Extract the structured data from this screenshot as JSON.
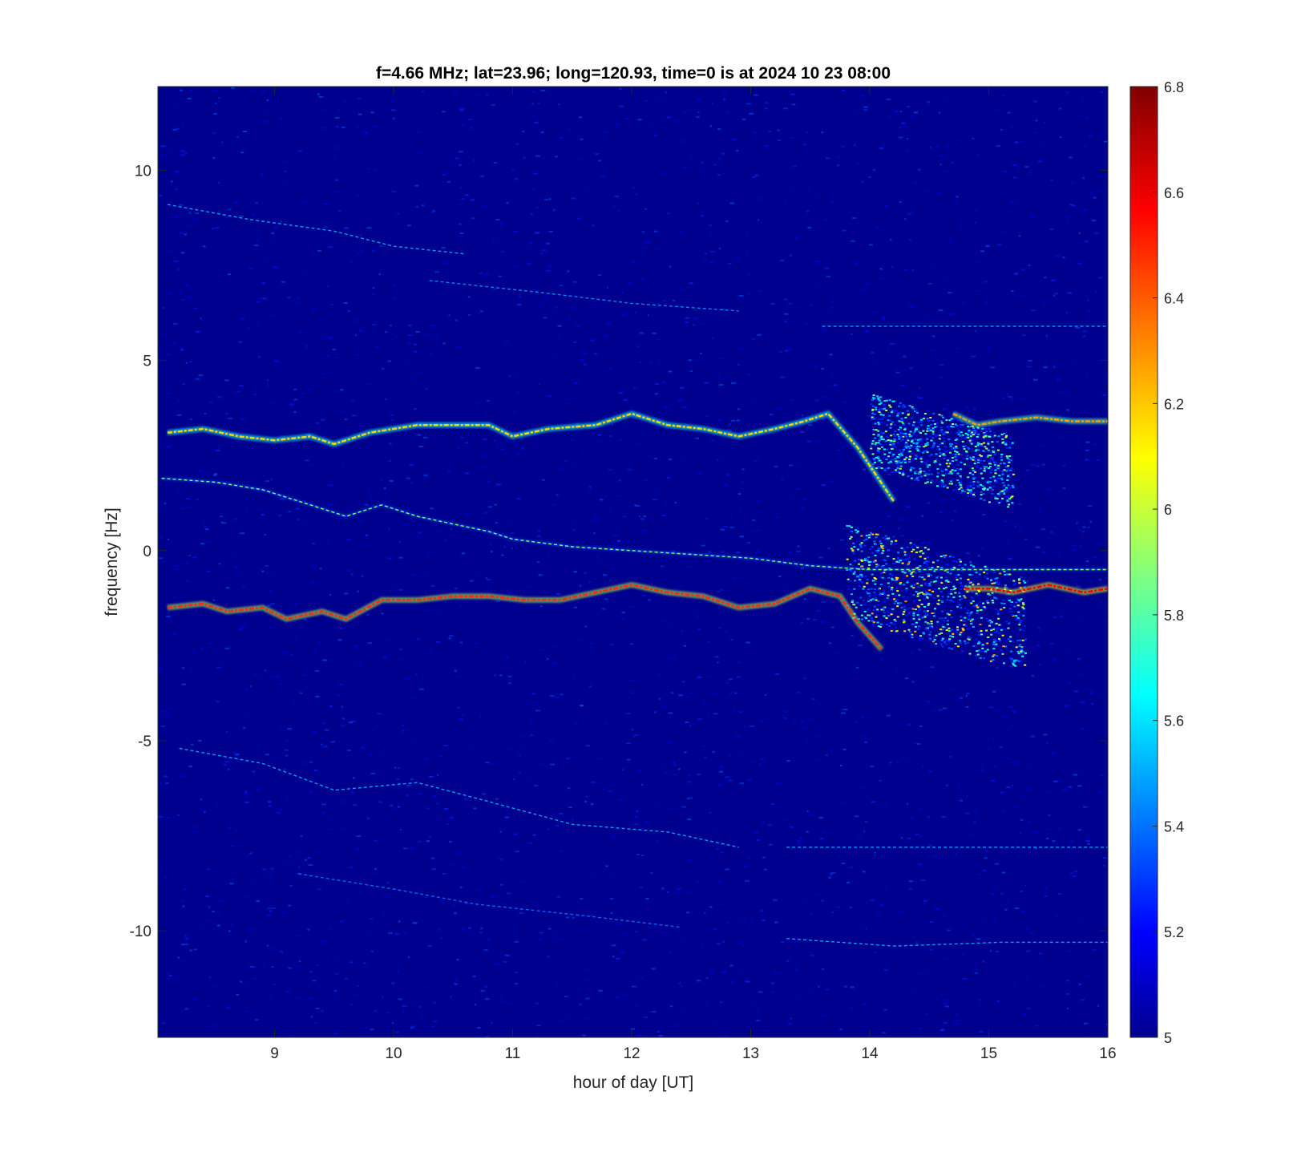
{
  "chart_data": {
    "type": "heatmap",
    "title": "f=4.66 MHz;  lat=23.96; long=120.93, time=0 is at 2024 10 23 08:00",
    "xlabel": "hour of day [UT]",
    "ylabel": "frequency [Hz]",
    "xlim": [
      8.02,
      16.0
    ],
    "ylim": [
      -12.8,
      12.2
    ],
    "xticks": [
      9,
      10,
      11,
      12,
      13,
      14,
      15,
      16
    ],
    "yticks": [
      -10,
      -5,
      0,
      5,
      10
    ],
    "colorbar": {
      "range": [
        5,
        6.8
      ],
      "ticks": [
        5,
        5.2,
        5.4,
        5.6,
        5.8,
        6,
        6.2,
        6.4,
        6.6,
        6.8
      ],
      "colormap": "jet"
    },
    "background_level": 5.0,
    "traces": [
      {
        "label": "upper doppler trace",
        "points": [
          [
            8.1,
            3.1
          ],
          [
            8.4,
            3.2
          ],
          [
            8.7,
            3.0
          ],
          [
            9.0,
            2.9
          ],
          [
            9.3,
            3.0
          ],
          [
            9.5,
            2.8
          ],
          [
            9.8,
            3.1
          ],
          [
            10.2,
            3.3
          ],
          [
            10.5,
            3.3
          ],
          [
            10.8,
            3.3
          ],
          [
            11.0,
            3.0
          ],
          [
            11.3,
            3.2
          ],
          [
            11.7,
            3.3
          ],
          [
            12.0,
            3.6
          ],
          [
            12.3,
            3.3
          ],
          [
            12.6,
            3.2
          ],
          [
            12.9,
            3.0
          ],
          [
            13.2,
            3.2
          ],
          [
            13.45,
            3.4
          ],
          [
            13.65,
            3.6
          ],
          [
            13.9,
            2.7
          ],
          [
            14.2,
            1.3
          ]
        ],
        "intensity": 6.2
      },
      {
        "label": "upper doppler trace recovered",
        "points": [
          [
            14.7,
            3.6
          ],
          [
            14.9,
            3.3
          ],
          [
            15.1,
            3.4
          ],
          [
            15.4,
            3.5
          ],
          [
            15.7,
            3.4
          ],
          [
            16.0,
            3.4
          ]
        ],
        "intensity": 6.3
      },
      {
        "label": "central drifting trace",
        "points": [
          [
            8.05,
            1.9
          ],
          [
            8.5,
            1.8
          ],
          [
            8.9,
            1.6
          ],
          [
            9.3,
            1.2
          ],
          [
            9.6,
            0.9
          ],
          [
            9.9,
            1.2
          ],
          [
            10.2,
            0.9
          ],
          [
            10.5,
            0.7
          ],
          [
            10.8,
            0.5
          ],
          [
            11.0,
            0.3
          ],
          [
            11.5,
            0.1
          ],
          [
            12.0,
            0.0
          ],
          [
            12.5,
            -0.1
          ],
          [
            13.0,
            -0.2
          ],
          [
            13.5,
            -0.4
          ],
          [
            14.0,
            -0.5
          ],
          [
            15.0,
            -0.5
          ],
          [
            16.0,
            -0.5
          ]
        ],
        "intensity": 5.9
      },
      {
        "label": "lower doppler trace",
        "points": [
          [
            8.1,
            -1.5
          ],
          [
            8.4,
            -1.4
          ],
          [
            8.6,
            -1.6
          ],
          [
            8.9,
            -1.5
          ],
          [
            9.1,
            -1.8
          ],
          [
            9.4,
            -1.6
          ],
          [
            9.6,
            -1.8
          ],
          [
            9.9,
            -1.3
          ],
          [
            10.2,
            -1.3
          ],
          [
            10.5,
            -1.2
          ],
          [
            10.8,
            -1.2
          ],
          [
            11.1,
            -1.3
          ],
          [
            11.4,
            -1.3
          ],
          [
            11.7,
            -1.1
          ],
          [
            12.0,
            -0.9
          ],
          [
            12.3,
            -1.1
          ],
          [
            12.6,
            -1.2
          ],
          [
            12.9,
            -1.5
          ],
          [
            13.2,
            -1.4
          ],
          [
            13.5,
            -1.0
          ],
          [
            13.75,
            -1.2
          ],
          [
            13.9,
            -1.9
          ],
          [
            14.1,
            -2.6
          ]
        ],
        "intensity": 6.5
      },
      {
        "label": "lower doppler trace recovered",
        "points": [
          [
            14.8,
            -1.0
          ],
          [
            15.0,
            -1.0
          ],
          [
            15.2,
            -1.1
          ],
          [
            15.5,
            -0.9
          ],
          [
            15.8,
            -1.1
          ],
          [
            16.0,
            -1.0
          ]
        ],
        "intensity": 6.6
      },
      {
        "label": "faint trace 9 Hz",
        "points": [
          [
            8.1,
            9.1
          ],
          [
            8.8,
            8.7
          ],
          [
            9.5,
            8.4
          ],
          [
            10.0,
            8.0
          ],
          [
            10.6,
            7.8
          ]
        ],
        "intensity": 5.5
      },
      {
        "label": "faint trace 7 Hz",
        "points": [
          [
            10.3,
            7.1
          ],
          [
            11.2,
            6.8
          ],
          [
            12.0,
            6.5
          ],
          [
            12.9,
            6.3
          ]
        ],
        "intensity": 5.45
      },
      {
        "label": "faint trace 6 Hz",
        "points": [
          [
            13.6,
            5.9
          ],
          [
            14.5,
            5.9
          ],
          [
            15.3,
            5.9
          ],
          [
            16.0,
            5.9
          ]
        ],
        "intensity": 5.5
      },
      {
        "label": "faint trace -5 Hz",
        "points": [
          [
            8.2,
            -5.2
          ],
          [
            8.9,
            -5.6
          ],
          [
            9.5,
            -6.3
          ],
          [
            10.2,
            -6.1
          ],
          [
            10.8,
            -6.6
          ],
          [
            11.5,
            -7.2
          ],
          [
            12.3,
            -7.4
          ],
          [
            12.9,
            -7.8
          ]
        ],
        "intensity": 5.5
      },
      {
        "label": "faint trace -8 Hz",
        "points": [
          [
            13.3,
            -7.8
          ],
          [
            14.2,
            -7.8
          ],
          [
            15.1,
            -7.8
          ],
          [
            16.0,
            -7.8
          ]
        ],
        "intensity": 5.5
      },
      {
        "label": "faint trace -9 Hz",
        "points": [
          [
            9.2,
            -8.5
          ],
          [
            10.0,
            -8.9
          ],
          [
            10.7,
            -9.3
          ],
          [
            11.6,
            -9.6
          ],
          [
            12.4,
            -9.9
          ]
        ],
        "intensity": 5.4
      },
      {
        "label": "faint trace -10 Hz",
        "points": [
          [
            13.3,
            -10.2
          ],
          [
            14.2,
            -10.4
          ],
          [
            15.1,
            -10.3
          ],
          [
            16.0,
            -10.3
          ]
        ],
        "intensity": 5.5
      }
    ],
    "scatter_blobs": [
      {
        "label": "disturbance upper",
        "x_range": [
          14.0,
          15.2
        ],
        "y_range": [
          1.0,
          4.5
        ],
        "peak_intensity": 5.8
      },
      {
        "label": "disturbance lower",
        "x_range": [
          13.8,
          15.3
        ],
        "y_range": [
          -3.3,
          1.2
        ],
        "peak_intensity": 6.1
      }
    ]
  }
}
